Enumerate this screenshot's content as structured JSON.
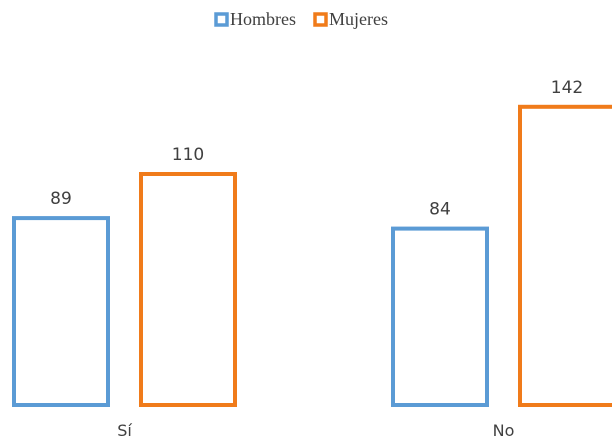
{
  "chart_data": {
    "type": "bar",
    "categories": [
      "Sí",
      "No"
    ],
    "series": [
      {
        "name": "Hombres",
        "values": [
          89,
          84
        ],
        "color": "#5B9BD5"
      },
      {
        "name": "Mujeres",
        "values": [
          110,
          142
        ],
        "color": "#F07B1A"
      }
    ],
    "title": "",
    "xlabel": "",
    "ylabel": "",
    "ylim": [
      0,
      160
    ],
    "grid": false,
    "legend": "top-center"
  }
}
